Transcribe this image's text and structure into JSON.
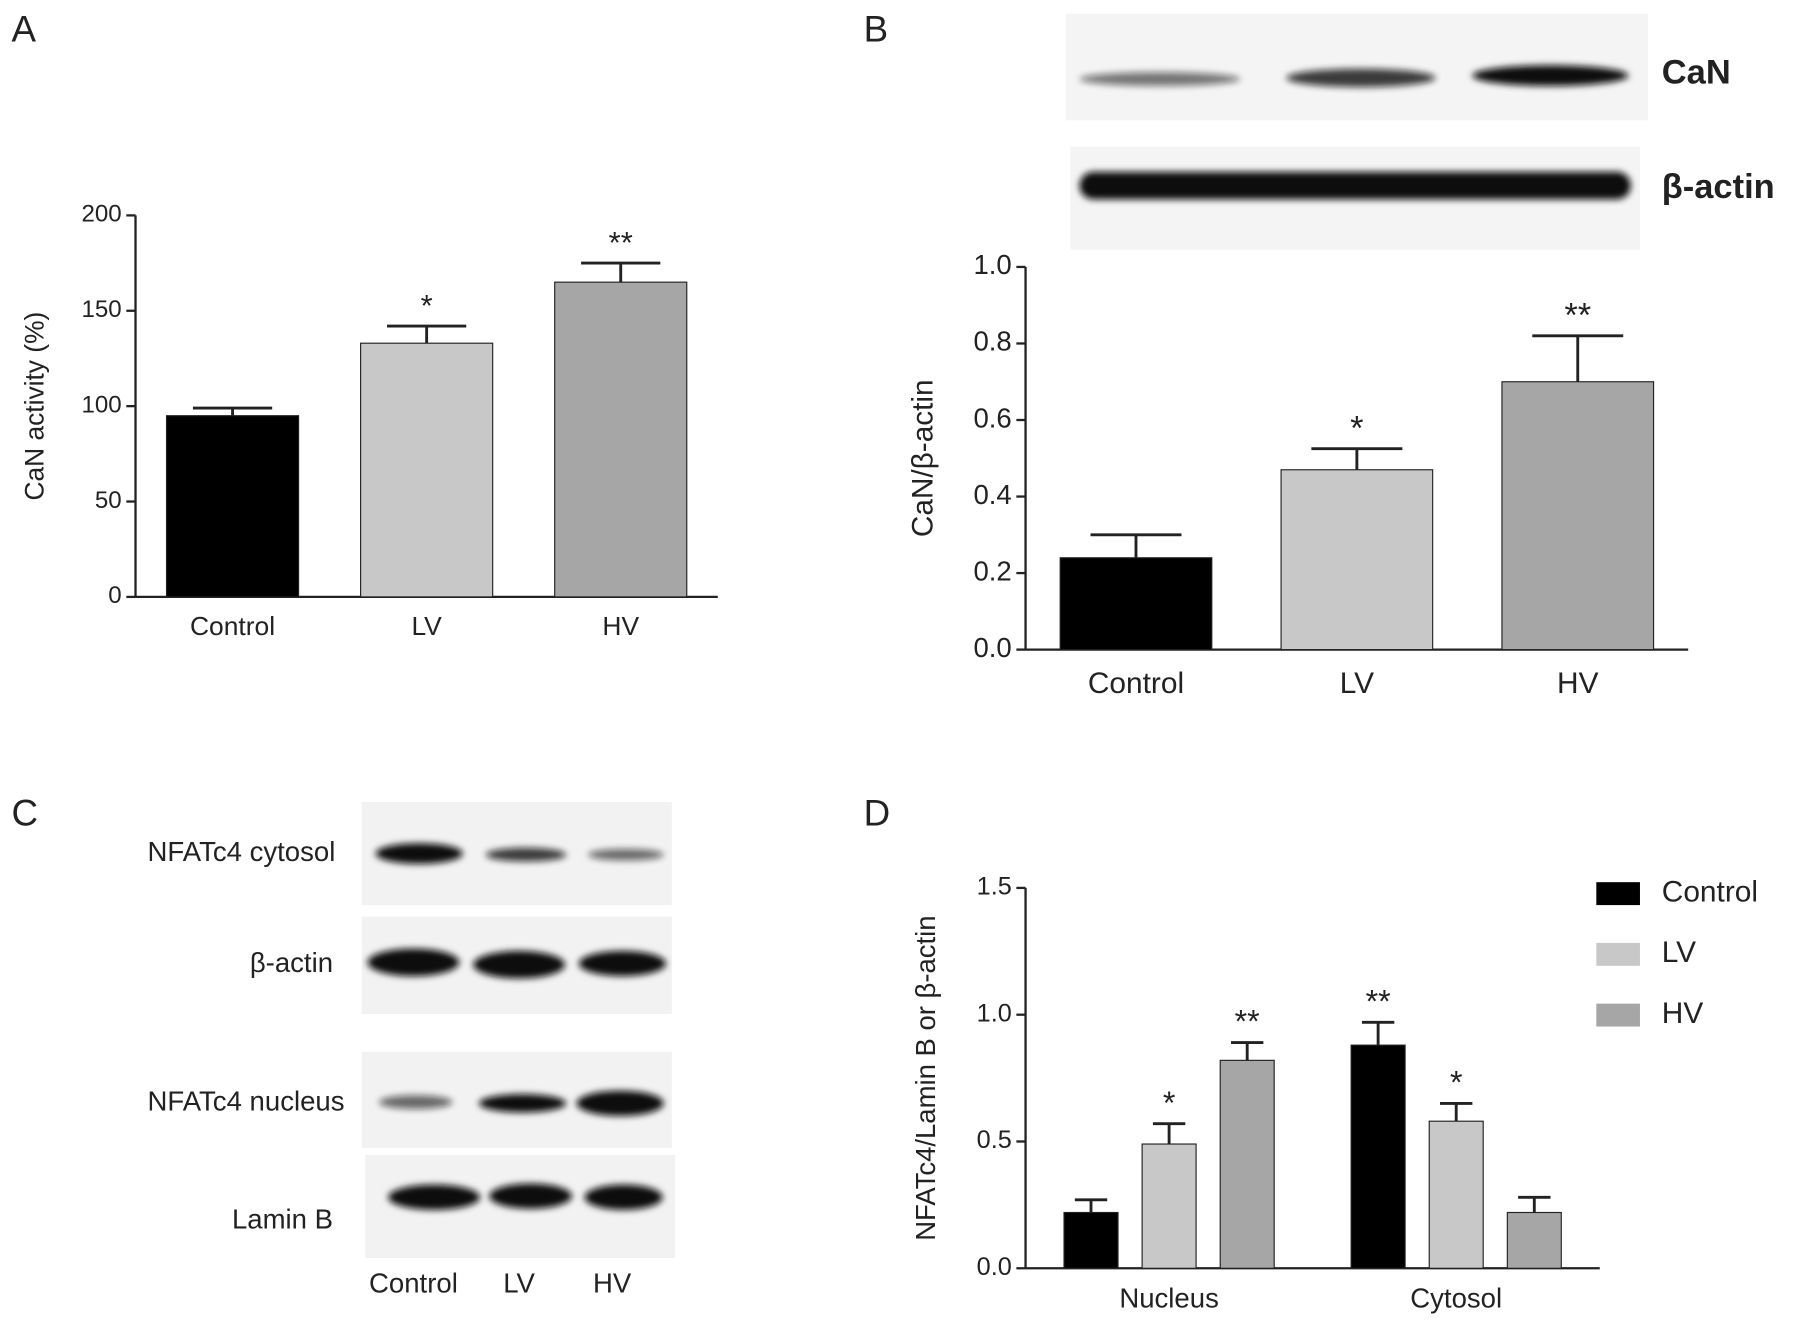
{
  "panel_labels": [
    "A",
    "B",
    "C",
    "D"
  ],
  "blot_b": {
    "labels": [
      "CaN",
      "β-actin"
    ]
  },
  "blot_c": {
    "labels": [
      "NFATc4 cytosol",
      "β-actin",
      "NFATc4 nucleus",
      "Lamin B"
    ],
    "lanes": [
      "Control",
      "LV",
      "HV"
    ]
  },
  "chart_data": [
    {
      "type": "bar",
      "y_label": "CaN activity (%)",
      "categories": [
        "Control",
        "LV",
        "HV"
      ],
      "values": [
        95,
        133,
        165
      ],
      "errors": [
        4,
        9,
        10
      ],
      "significance": [
        null,
        "*",
        "**"
      ],
      "colors": [
        "#000000",
        "#c8c8c8",
        "#a6a6a6"
      ],
      "ylim": [
        0,
        200
      ],
      "yticks": [
        0,
        50,
        100,
        150,
        200
      ]
    },
    {
      "type": "bar",
      "y_label": "CaN/β-actin",
      "categories": [
        "Control",
        "LV",
        "HV"
      ],
      "values": [
        0.24,
        0.47,
        0.7
      ],
      "errors": [
        0.06,
        0.055,
        0.12
      ],
      "significance": [
        null,
        "*",
        "**"
      ],
      "colors": [
        "#000000",
        "#c8c8c8",
        "#a6a6a6"
      ],
      "ylim": [
        0,
        1.0
      ],
      "yticks": [
        {
          "value": 0,
          "label": "0.0"
        },
        0.2,
        0.4,
        0.6,
        0.8,
        {
          "value": 1,
          "label": "1.0"
        }
      ]
    },
    {
      "type": "grouped_bar",
      "y_label": "NFATc4/Lamin B or β-actin",
      "categories": [
        "Nucleus",
        "Cytosol"
      ],
      "series": [
        {
          "name": "Control",
          "color": "#000000",
          "values": [
            0.22,
            0.88
          ],
          "errors": [
            0.05,
            0.09
          ],
          "significance": [
            null,
            "**"
          ]
        },
        {
          "name": "LV",
          "color": "#c8c8c8",
          "values": [
            0.49,
            0.58
          ],
          "errors": [
            0.08,
            0.07
          ],
          "significance": [
            "*",
            "*"
          ]
        },
        {
          "name": "HV",
          "color": "#a6a6a6",
          "values": [
            0.82,
            0.22
          ],
          "errors": [
            0.07,
            0.06
          ],
          "significance": [
            "**",
            null
          ]
        }
      ],
      "ylim": [
        0,
        1.5
      ],
      "yticks": [
        {
          "value": 0,
          "label": "0.0"
        },
        0.5,
        {
          "value": 1,
          "label": "1.0"
        },
        1.5
      ],
      "legend": "right"
    }
  ]
}
